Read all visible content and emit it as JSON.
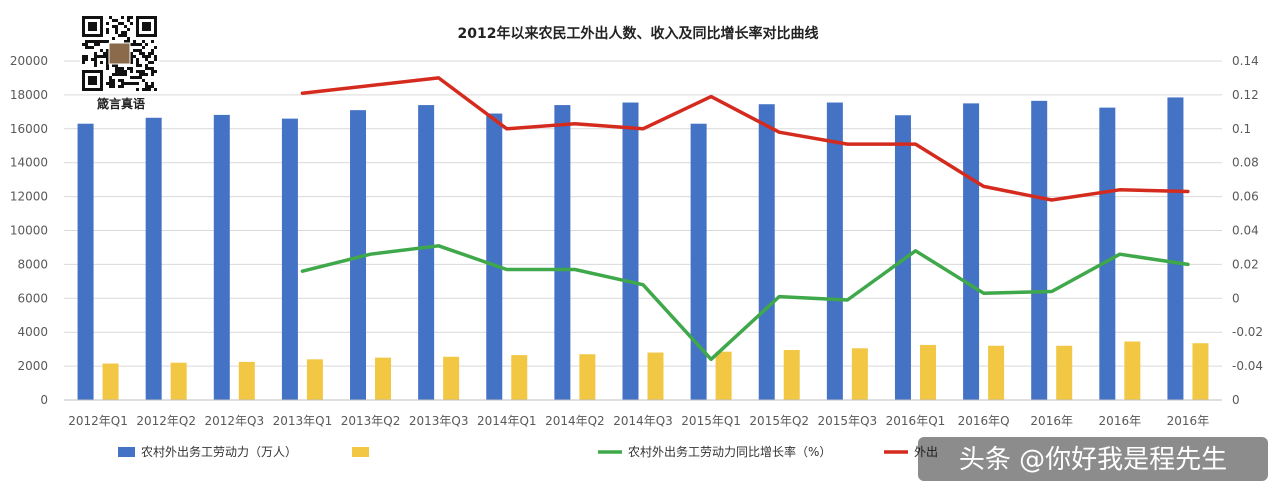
{
  "chart_data": {
    "type": "bar",
    "title": "2012年以来农民工外出人数、收入及同比增长率对比曲线",
    "categories": [
      "2012年Q1",
      "2012年Q2",
      "2012年Q3",
      "2013年Q1",
      "2013年Q2",
      "2013年Q3",
      "2014年Q1",
      "2014年Q2",
      "2014年Q3",
      "2015年Q1",
      "2015年Q2",
      "2015年Q3",
      "2016年Q1",
      "2016年Q",
      "2016年",
      "2016年",
      "2016年"
    ],
    "y_left": {
      "ticks": [
        0,
        2000,
        4000,
        6000,
        8000,
        10000,
        12000,
        14000,
        16000,
        18000,
        20000
      ],
      "ylim": [
        0,
        20000
      ]
    },
    "y_right": {
      "ticks": [
        -0.04,
        -0.02,
        0,
        0.02,
        0.04,
        0.06,
        0.08,
        0.1,
        0.12,
        0.14
      ],
      "ylim": [
        -0.06,
        0.14
      ],
      "bottom_label": "0"
    },
    "grid": true,
    "legend_position": "bottom",
    "series": [
      {
        "name": "农村外出务工劳动力（万人）",
        "type": "bar",
        "axis": "left",
        "color": "#4472C4",
        "values": [
          16300,
          16650,
          16820,
          16600,
          17100,
          17400,
          16900,
          17400,
          17550,
          16300,
          17450,
          17550,
          16800,
          17500,
          17650,
          17250,
          17850
        ]
      },
      {
        "name": "",
        "type": "bar",
        "axis": "left",
        "color": "#F2C744",
        "values": [
          2150,
          2200,
          2250,
          2400,
          2500,
          2550,
          2650,
          2700,
          2800,
          2850,
          2950,
          3050,
          3250,
          3200,
          3200,
          3450,
          3350
        ]
      },
      {
        "name": "农村外出务工劳动力同比增长率（%）",
        "type": "line",
        "axis": "right",
        "color": "#3EA84A",
        "values": [
          null,
          null,
          null,
          0.016,
          0.026,
          0.031,
          0.017,
          0.017,
          0.008,
          -0.036,
          0.001,
          -0.001,
          0.028,
          0.003,
          0.004,
          0.026,
          0.02
        ]
      },
      {
        "name": "外出",
        "type": "line",
        "axis": "right",
        "color": "#D52B1E",
        "values": [
          null,
          null,
          null,
          0.121,
          null,
          0.13,
          0.1,
          0.103,
          0.1,
          0.119,
          0.098,
          0.091,
          0.091,
          0.066,
          0.058,
          0.064,
          0.063
        ]
      }
    ]
  },
  "branding": {
    "caption": "箴言真语"
  },
  "watermark": {
    "text": "头条 @你好我是程先生"
  }
}
